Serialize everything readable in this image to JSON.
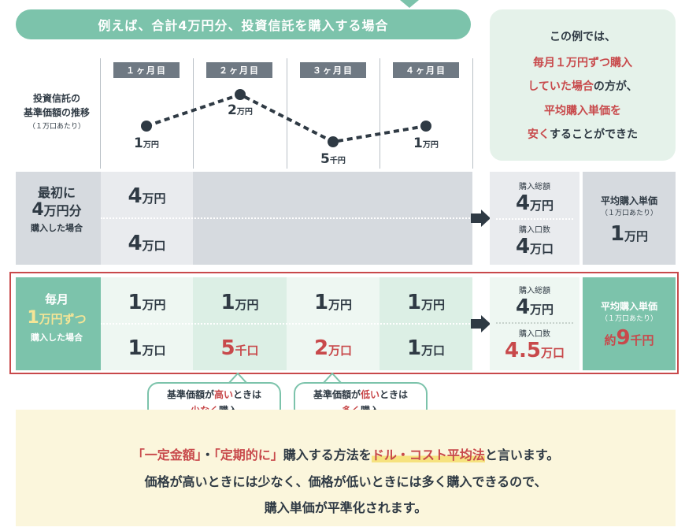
{
  "header": {
    "title": "例えば、合計4万円分、投資信託を購入する場合"
  },
  "info": {
    "line1": "この例では、",
    "line2": "毎月１万円ずつ購入",
    "line3a": "していた場合",
    "line3b": "の方が、",
    "line4": "平均購入単価を",
    "line5a": "安く",
    "line5b": "することができた"
  },
  "months": [
    "１ヶ月目",
    "２ヶ月目",
    "３ヶ月目",
    "４ヶ月目"
  ],
  "trend": {
    "label1": "投資信託の",
    "label2": "基準価額の推移",
    "label3": "（１万口あたり）",
    "prices": [
      {
        "num": "1",
        "unit": "万円",
        "value": 10000
      },
      {
        "num": "2",
        "unit": "万円",
        "value": 20000
      },
      {
        "num": "5",
        "unit": "千円",
        "value": 5000
      },
      {
        "num": "1",
        "unit": "万円",
        "value": 10000
      }
    ]
  },
  "lump": {
    "label1": "最初に",
    "label2a": "4",
    "label2b": "万円分",
    "label3": "購入した場合",
    "amount_num": "4",
    "amount_unit": "万円",
    "units_num": "4",
    "units_unit": "万口",
    "total_label": "購入総額",
    "total_num": "4",
    "total_unit": "万円",
    "qty_label": "購入口数",
    "qty_num": "4",
    "qty_unit": "万口",
    "avg_label": "平均購入単価",
    "avg_sub": "（１万口あたり）",
    "avg_num": "1",
    "avg_unit": "万円"
  },
  "monthly": {
    "label1": "毎月",
    "label2a": "1",
    "label2b": "万円ずつ",
    "label3": "購入した場合",
    "amounts": [
      {
        "num": "1",
        "unit": "万円"
      },
      {
        "num": "1",
        "unit": "万円"
      },
      {
        "num": "1",
        "unit": "万円"
      },
      {
        "num": "1",
        "unit": "万円"
      }
    ],
    "units": [
      {
        "num": "1",
        "unit": "万口",
        "red": false
      },
      {
        "num": "5",
        "unit": "千口",
        "red": true
      },
      {
        "num": "2",
        "unit": "万口",
        "red": true
      },
      {
        "num": "1",
        "unit": "万口",
        "red": false
      }
    ],
    "total_label": "購入総額",
    "total_num": "4",
    "total_unit": "万円",
    "qty_label": "購入口数",
    "qty_num": "4.5",
    "qty_unit": "万口",
    "avg_label": "平均購入単価",
    "avg_sub": "（１万口あたり）",
    "avg_pre": "約",
    "avg_num": "9",
    "avg_unit": "千円"
  },
  "callouts": {
    "high_a": "基準価額が",
    "high_b": "高い",
    "high_c": "ときは",
    "high_d": "少なく",
    "high_e": "購入",
    "low_a": "基準価額が",
    "low_b": "低い",
    "low_c": "ときは",
    "low_d": "多く",
    "low_e": "購入"
  },
  "bottom": {
    "q1": "「一定金額」",
    "dot": "・",
    "q2": "「定期的に」",
    "mid": "購入する方法を",
    "method": "ドル・コスト平均法",
    "end": "と言います。",
    "line2": "価格が高いときには少なく、価格が低いときには多く購入できるので、",
    "line3": "購入単価が平準化されます。"
  },
  "colors": {
    "accent": "#7cc3ab",
    "red": "#c8494b",
    "gray": "#d6dadf",
    "dark": "#2f3a44"
  }
}
